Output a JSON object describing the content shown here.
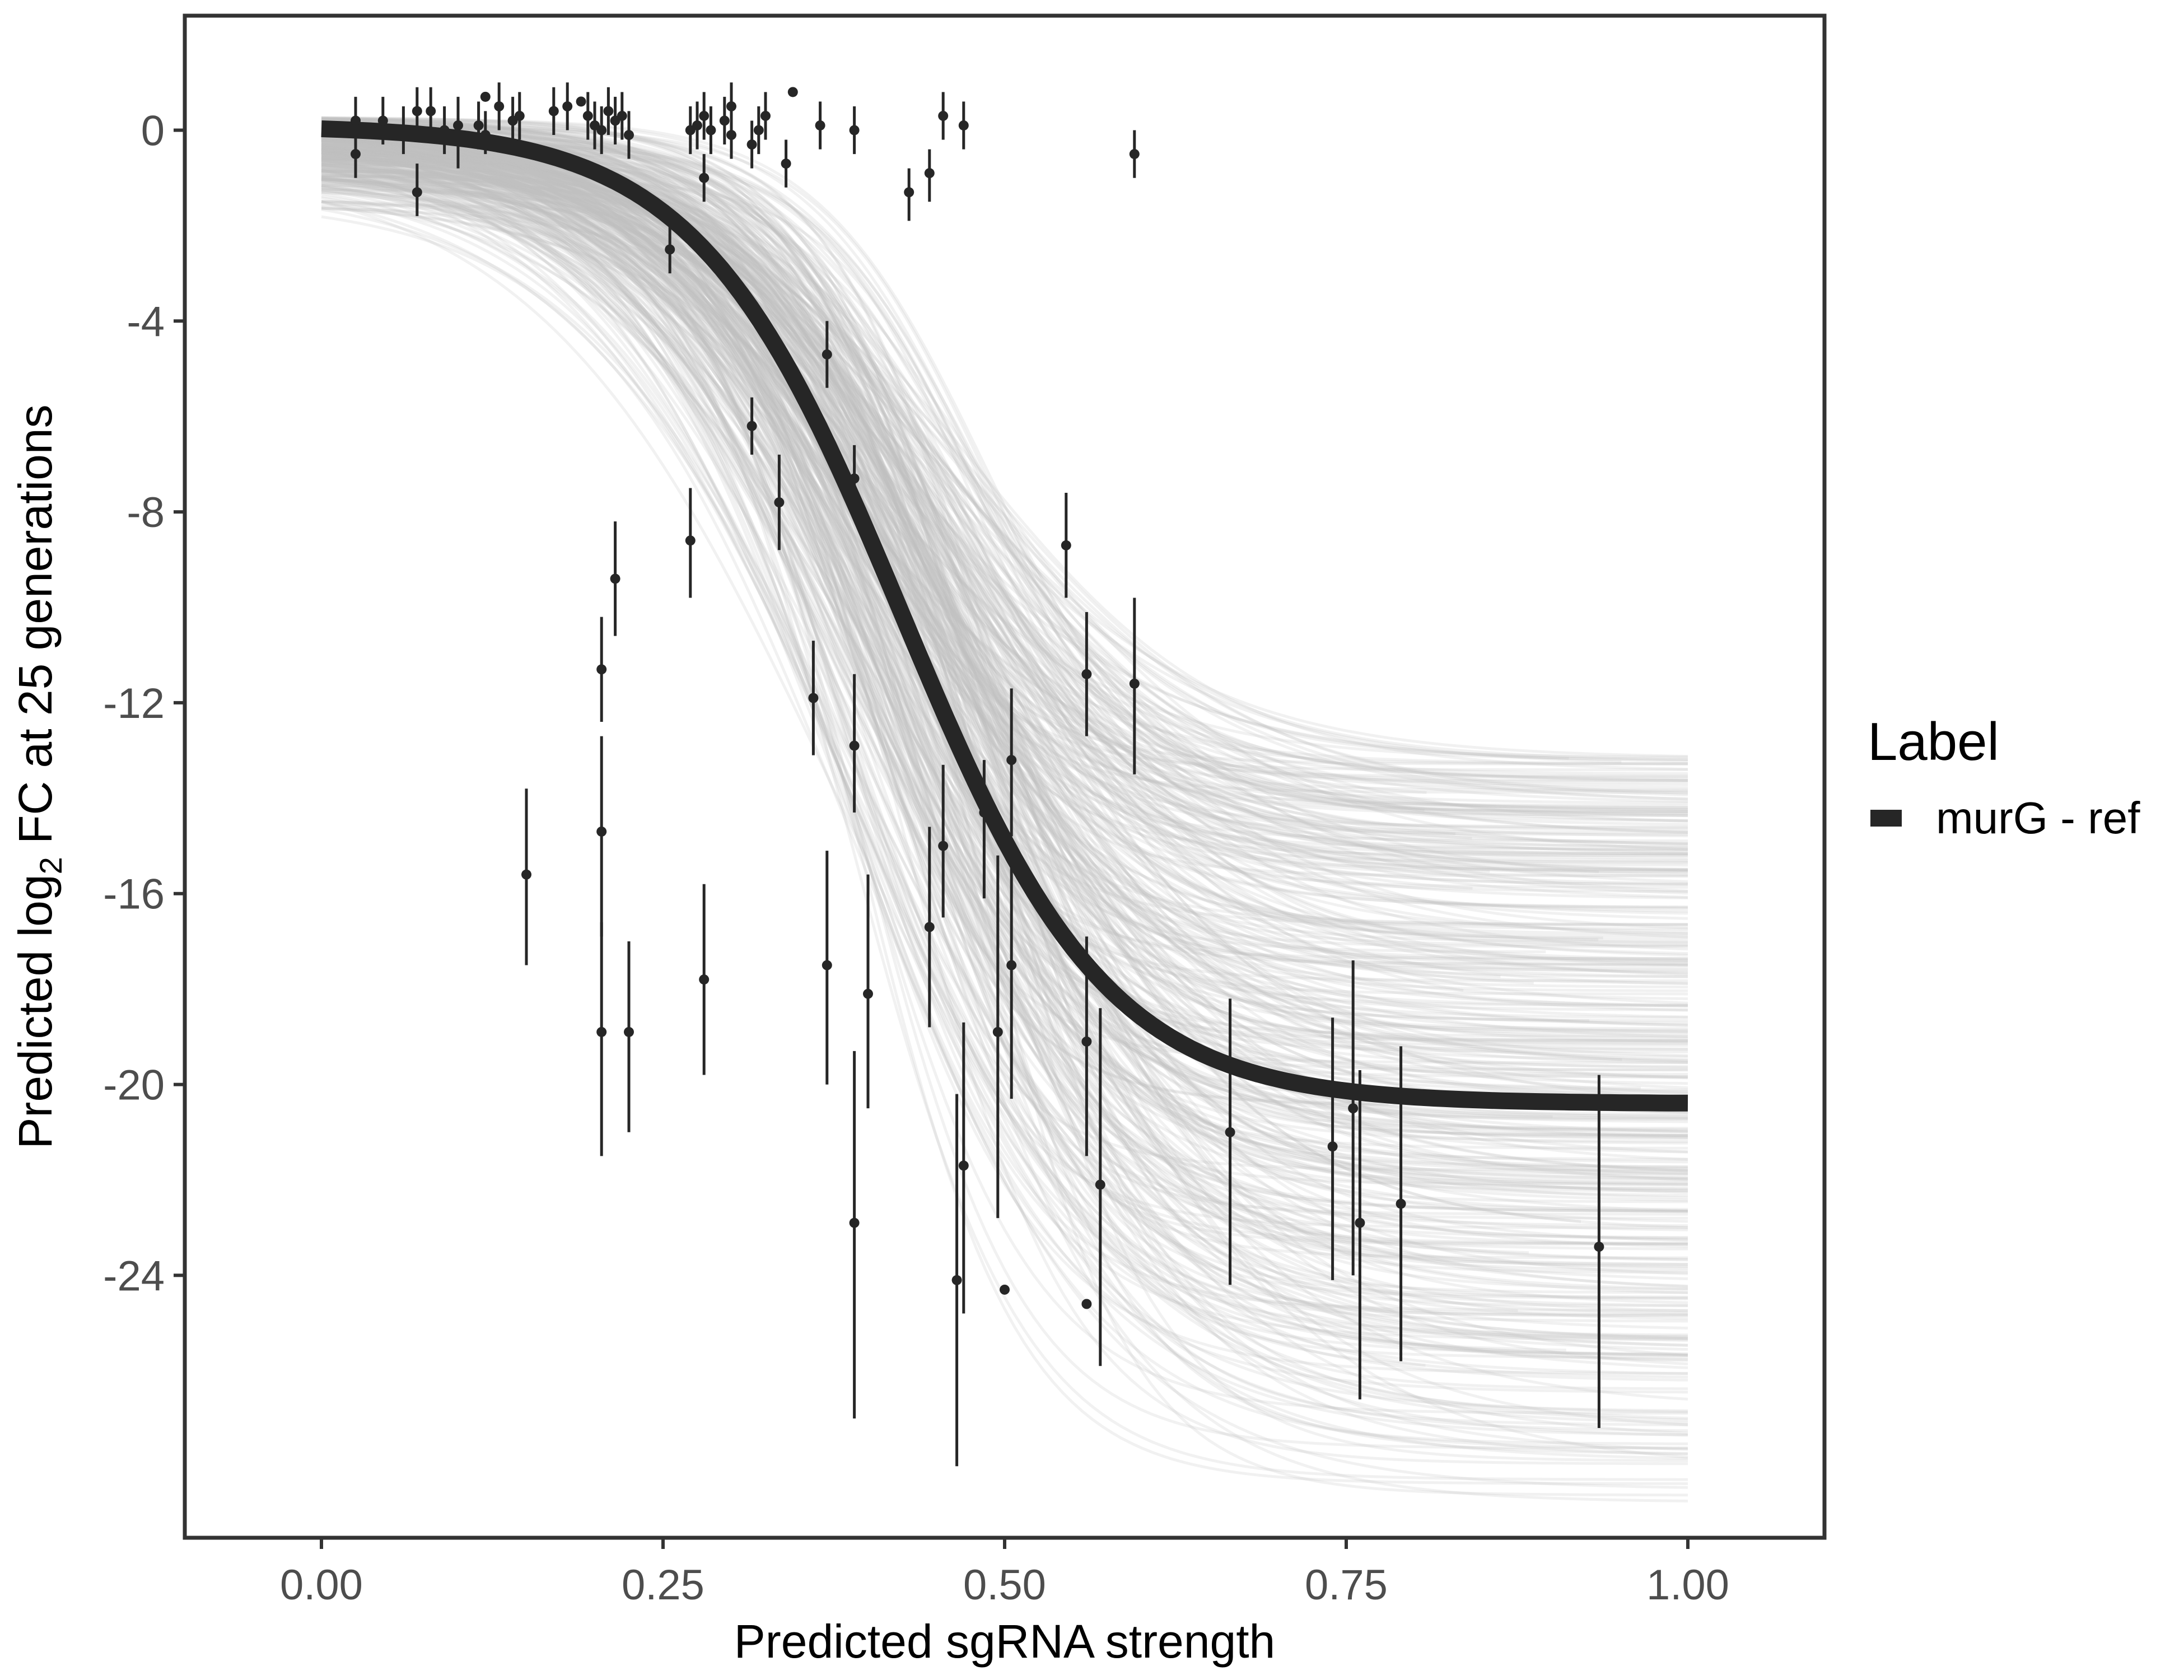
{
  "chart_data": {
    "type": "line",
    "title": "",
    "xlabel": "Predicted sgRNA strength",
    "ylabel": {
      "prefix": "Predicted  log",
      "subscript": "2",
      "suffix": " FC at 25 generations"
    },
    "xlim": [
      -0.1,
      1.1
    ],
    "ylim": [
      -29.5,
      2.4
    ],
    "x_ticks": [
      {
        "value": 0.0,
        "label": "0.00"
      },
      {
        "value": 0.25,
        "label": "0.25"
      },
      {
        "value": 0.5,
        "label": "0.50"
      },
      {
        "value": 0.75,
        "label": "0.75"
      },
      {
        "value": 1.0,
        "label": "1.00"
      }
    ],
    "y_ticks": [
      {
        "value": 0,
        "label": "0"
      },
      {
        "value": -4,
        "label": "-4"
      },
      {
        "value": -8,
        "label": "-8"
      },
      {
        "value": -12,
        "label": "-12"
      },
      {
        "value": -16,
        "label": "-16"
      },
      {
        "value": -20,
        "label": "-20"
      },
      {
        "value": -24,
        "label": "-24"
      }
    ],
    "grid": false,
    "legend": {
      "title": "Label",
      "position": "right",
      "entries": [
        {
          "label": "murG - ref",
          "color": "#262626"
        }
      ]
    },
    "fit_curve": {
      "name": "murG - ref",
      "color": "#262626",
      "model": "logistic",
      "upper": 0.1,
      "lower": -20.4,
      "midpoint": 0.425,
      "scale": 0.075,
      "x_range": [
        0.0,
        1.0
      ]
    },
    "posterior_draws": {
      "count": 400,
      "color": "#bdbdbd",
      "upper_range": [
        -1.8,
        0.3
      ],
      "lower_range": [
        -29.0,
        -13.0
      ],
      "midpoint_range": [
        0.37,
        0.49
      ],
      "scale_range": [
        0.055,
        0.11
      ]
    },
    "points": [
      {
        "x": 0.025,
        "y": 0.2,
        "lo": -0.4,
        "hi": 0.7
      },
      {
        "x": 0.025,
        "y": -0.5,
        "lo": -1.0,
        "hi": 0.0
      },
      {
        "x": 0.045,
        "y": 0.2,
        "lo": -0.3,
        "hi": 0.7
      },
      {
        "x": 0.06,
        "y": 0.0,
        "lo": -0.5,
        "hi": 0.5
      },
      {
        "x": 0.07,
        "y": 0.4,
        "lo": -0.1,
        "hi": 0.9
      },
      {
        "x": 0.07,
        "y": -1.3,
        "lo": -1.8,
        "hi": -0.7
      },
      {
        "x": 0.08,
        "y": 0.4,
        "lo": -0.1,
        "hi": 0.9
      },
      {
        "x": 0.09,
        "y": 0.0,
        "lo": -0.5,
        "hi": 0.5
      },
      {
        "x": 0.1,
        "y": 0.1,
        "lo": -0.8,
        "hi": 0.7
      },
      {
        "x": 0.115,
        "y": 0.1,
        "lo": -0.4,
        "hi": 0.6
      },
      {
        "x": 0.12,
        "y": 0.7,
        "lo": 0.7,
        "hi": 0.7
      },
      {
        "x": 0.12,
        "y": -0.1,
        "lo": -0.5,
        "hi": 0.4
      },
      {
        "x": 0.13,
        "y": 0.5,
        "lo": 0.0,
        "hi": 1.0
      },
      {
        "x": 0.14,
        "y": 0.2,
        "lo": -0.3,
        "hi": 0.7
      },
      {
        "x": 0.145,
        "y": 0.3,
        "lo": -0.2,
        "hi": 0.8
      },
      {
        "x": 0.17,
        "y": 0.4,
        "lo": -0.1,
        "hi": 0.9
      },
      {
        "x": 0.18,
        "y": 0.5,
        "lo": 0.0,
        "hi": 1.0
      },
      {
        "x": 0.19,
        "y": 0.6,
        "lo": 0.6,
        "hi": 0.6
      },
      {
        "x": 0.195,
        "y": 0.3,
        "lo": -0.2,
        "hi": 0.8
      },
      {
        "x": 0.2,
        "y": 0.1,
        "lo": -0.4,
        "hi": 0.6
      },
      {
        "x": 0.205,
        "y": 0.0,
        "lo": -0.5,
        "hi": 0.5
      },
      {
        "x": 0.21,
        "y": 0.4,
        "lo": -0.1,
        "hi": 0.9
      },
      {
        "x": 0.215,
        "y": 0.2,
        "lo": -0.3,
        "hi": 0.7
      },
      {
        "x": 0.22,
        "y": 0.3,
        "lo": -0.2,
        "hi": 0.8
      },
      {
        "x": 0.225,
        "y": -0.1,
        "lo": -0.6,
        "hi": 0.4
      },
      {
        "x": 0.27,
        "y": 0.0,
        "lo": -0.5,
        "hi": 0.5
      },
      {
        "x": 0.275,
        "y": 0.1,
        "lo": -0.4,
        "hi": 0.6
      },
      {
        "x": 0.28,
        "y": 0.3,
        "lo": -0.2,
        "hi": 0.8
      },
      {
        "x": 0.28,
        "y": -1.0,
        "lo": -1.5,
        "hi": -0.5
      },
      {
        "x": 0.285,
        "y": 0.0,
        "lo": -0.5,
        "hi": 0.5
      },
      {
        "x": 0.295,
        "y": 0.2,
        "lo": -0.3,
        "hi": 0.7
      },
      {
        "x": 0.3,
        "y": 0.5,
        "lo": 0.0,
        "hi": 1.0
      },
      {
        "x": 0.3,
        "y": -0.1,
        "lo": -0.6,
        "hi": 0.4
      },
      {
        "x": 0.315,
        "y": -0.3,
        "lo": -0.8,
        "hi": 0.2
      },
      {
        "x": 0.32,
        "y": 0.0,
        "lo": -0.5,
        "hi": 0.5
      },
      {
        "x": 0.325,
        "y": 0.3,
        "lo": -0.2,
        "hi": 0.8
      },
      {
        "x": 0.34,
        "y": -0.7,
        "lo": -1.2,
        "hi": -0.2
      },
      {
        "x": 0.345,
        "y": 0.8,
        "lo": 0.8,
        "hi": 0.8
      },
      {
        "x": 0.365,
        "y": 0.1,
        "lo": -0.4,
        "hi": 0.6
      },
      {
        "x": 0.39,
        "y": 0.0,
        "lo": -0.5,
        "hi": 0.5
      },
      {
        "x": 0.43,
        "y": -1.3,
        "lo": -1.9,
        "hi": -0.8
      },
      {
        "x": 0.445,
        "y": -0.9,
        "lo": -1.5,
        "hi": -0.4
      },
      {
        "x": 0.455,
        "y": 0.3,
        "lo": -0.2,
        "hi": 0.8
      },
      {
        "x": 0.47,
        "y": 0.1,
        "lo": -0.4,
        "hi": 0.6
      },
      {
        "x": 0.595,
        "y": -0.5,
        "lo": -1.0,
        "hi": 0.0
      },
      {
        "x": 0.255,
        "y": -2.5,
        "lo": -3.0,
        "hi": -1.9
      },
      {
        "x": 0.37,
        "y": -4.7,
        "lo": -5.4,
        "hi": -4.0
      },
      {
        "x": 0.315,
        "y": -6.2,
        "lo": -6.8,
        "hi": -5.6
      },
      {
        "x": 0.335,
        "y": -7.8,
        "lo": -8.8,
        "hi": -6.8
      },
      {
        "x": 0.39,
        "y": -7.3,
        "lo": -8.0,
        "hi": -6.6
      },
      {
        "x": 0.27,
        "y": -8.6,
        "lo": -9.8,
        "hi": -7.5
      },
      {
        "x": 0.215,
        "y": -9.4,
        "lo": -10.6,
        "hi": -8.2
      },
      {
        "x": 0.205,
        "y": -11.3,
        "lo": -12.4,
        "hi": -10.2
      },
      {
        "x": 0.36,
        "y": -11.9,
        "lo": -13.1,
        "hi": -10.7
      },
      {
        "x": 0.39,
        "y": -12.9,
        "lo": -14.3,
        "hi": -11.4
      },
      {
        "x": 0.545,
        "y": -8.7,
        "lo": -9.8,
        "hi": -7.6
      },
      {
        "x": 0.56,
        "y": -11.4,
        "lo": -12.7,
        "hi": -10.1
      },
      {
        "x": 0.595,
        "y": -11.6,
        "lo": -13.5,
        "hi": -9.8
      },
      {
        "x": 0.205,
        "y": -14.7,
        "lo": -16.9,
        "hi": -12.7
      },
      {
        "x": 0.15,
        "y": -15.6,
        "lo": -17.5,
        "hi": -13.8
      },
      {
        "x": 0.205,
        "y": -18.9,
        "lo": -21.5,
        "hi": -16.6
      },
      {
        "x": 0.225,
        "y": -18.9,
        "lo": -21.0,
        "hi": -17.0
      },
      {
        "x": 0.28,
        "y": -17.8,
        "lo": -19.8,
        "hi": -15.8
      },
      {
        "x": 0.37,
        "y": -17.5,
        "lo": -20.0,
        "hi": -15.1
      },
      {
        "x": 0.4,
        "y": -18.1,
        "lo": -20.5,
        "hi": -15.6
      },
      {
        "x": 0.39,
        "y": -22.9,
        "lo": -27.0,
        "hi": -19.3
      },
      {
        "x": 0.445,
        "y": -16.7,
        "lo": -18.8,
        "hi": -14.6
      },
      {
        "x": 0.455,
        "y": -15.0,
        "lo": -16.5,
        "hi": -13.3
      },
      {
        "x": 0.485,
        "y": -14.3,
        "lo": -16.1,
        "hi": -13.2
      },
      {
        "x": 0.495,
        "y": -18.9,
        "lo": -22.8,
        "hi": -15.2
      },
      {
        "x": 0.505,
        "y": -17.5,
        "lo": -20.3,
        "hi": -14.9
      },
      {
        "x": 0.505,
        "y": -13.2,
        "lo": -14.8,
        "hi": -11.7
      },
      {
        "x": 0.465,
        "y": -24.1,
        "lo": -28.0,
        "hi": -20.2
      },
      {
        "x": 0.47,
        "y": -21.7,
        "lo": -24.8,
        "hi": -18.7
      },
      {
        "x": 0.5,
        "y": -24.3,
        "lo": -24.3,
        "hi": -24.3
      },
      {
        "x": 0.56,
        "y": -24.6,
        "lo": -24.6,
        "hi": -24.6
      },
      {
        "x": 0.56,
        "y": -19.1,
        "lo": -21.5,
        "hi": -16.9
      },
      {
        "x": 0.57,
        "y": -22.1,
        "lo": -25.9,
        "hi": -18.4
      },
      {
        "x": 0.665,
        "y": -21.0,
        "lo": -24.2,
        "hi": -18.2
      },
      {
        "x": 0.74,
        "y": -21.3,
        "lo": -24.1,
        "hi": -18.6
      },
      {
        "x": 0.755,
        "y": -20.5,
        "lo": -24.0,
        "hi": -17.4
      },
      {
        "x": 0.76,
        "y": -22.9,
        "lo": -26.6,
        "hi": -19.7
      },
      {
        "x": 0.79,
        "y": -22.5,
        "lo": -25.8,
        "hi": -19.2
      },
      {
        "x": 0.935,
        "y": -23.4,
        "lo": -27.2,
        "hi": -19.8
      }
    ]
  }
}
